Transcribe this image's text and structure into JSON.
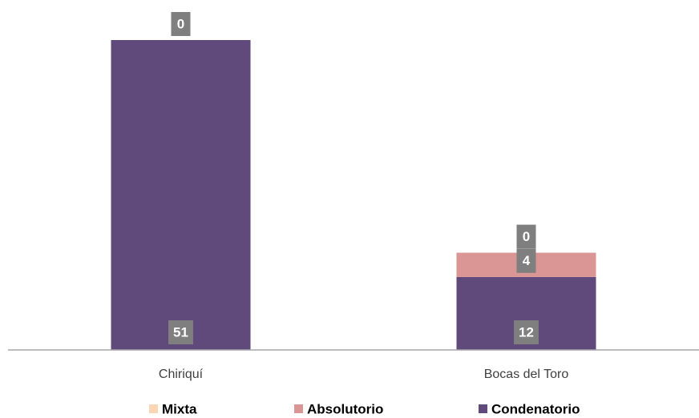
{
  "chart_data": {
    "type": "stacked-bar",
    "categories": [
      "Chiriquí",
      "Bocas del Toro"
    ],
    "series": [
      {
        "name": "Condenatorio",
        "color": "#604a7b",
        "values": [
          51,
          12
        ]
      },
      {
        "name": "Absolutorio",
        "color": "#d99694",
        "values": [
          0,
          4
        ]
      },
      {
        "name": "Mixta",
        "color": "#fcd5b5",
        "values": [
          0,
          0
        ]
      }
    ],
    "legend": "bottom"
  }
}
